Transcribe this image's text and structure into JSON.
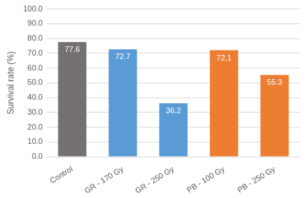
{
  "chart_data": {
    "type": "bar",
    "categories": [
      "Control",
      "GR - 170 Gy",
      "GR - 250 Gy",
      "PB - 100 Gy",
      "PB - 250 Gy"
    ],
    "values": [
      77.6,
      72.7,
      36.2,
      72.1,
      55.3
    ],
    "colors": [
      "#767171",
      "#5b9bd5",
      "#5b9bd5",
      "#ed7d31",
      "#ed7d31"
    ],
    "y_label": "Survival rate (%)",
    "ylim": [
      0,
      100
    ],
    "yticks": [
      {
        "value": 0,
        "label": "0.0"
      },
      {
        "value": 10,
        "label": "10.0"
      },
      {
        "value": 20,
        "label": "20.0"
      },
      {
        "value": 30,
        "label": "30.0"
      },
      {
        "value": 40,
        "label": "40.0"
      },
      {
        "value": 50,
        "label": "50.0"
      },
      {
        "value": 60,
        "label": "60.0"
      },
      {
        "value": 70,
        "label": "70.0"
      },
      {
        "value": 80,
        "label": "80.0"
      },
      {
        "value": 90,
        "label": "90.0"
      },
      {
        "value": 100,
        "label": "100.0"
      }
    ],
    "grid": true,
    "data_labels": true
  }
}
